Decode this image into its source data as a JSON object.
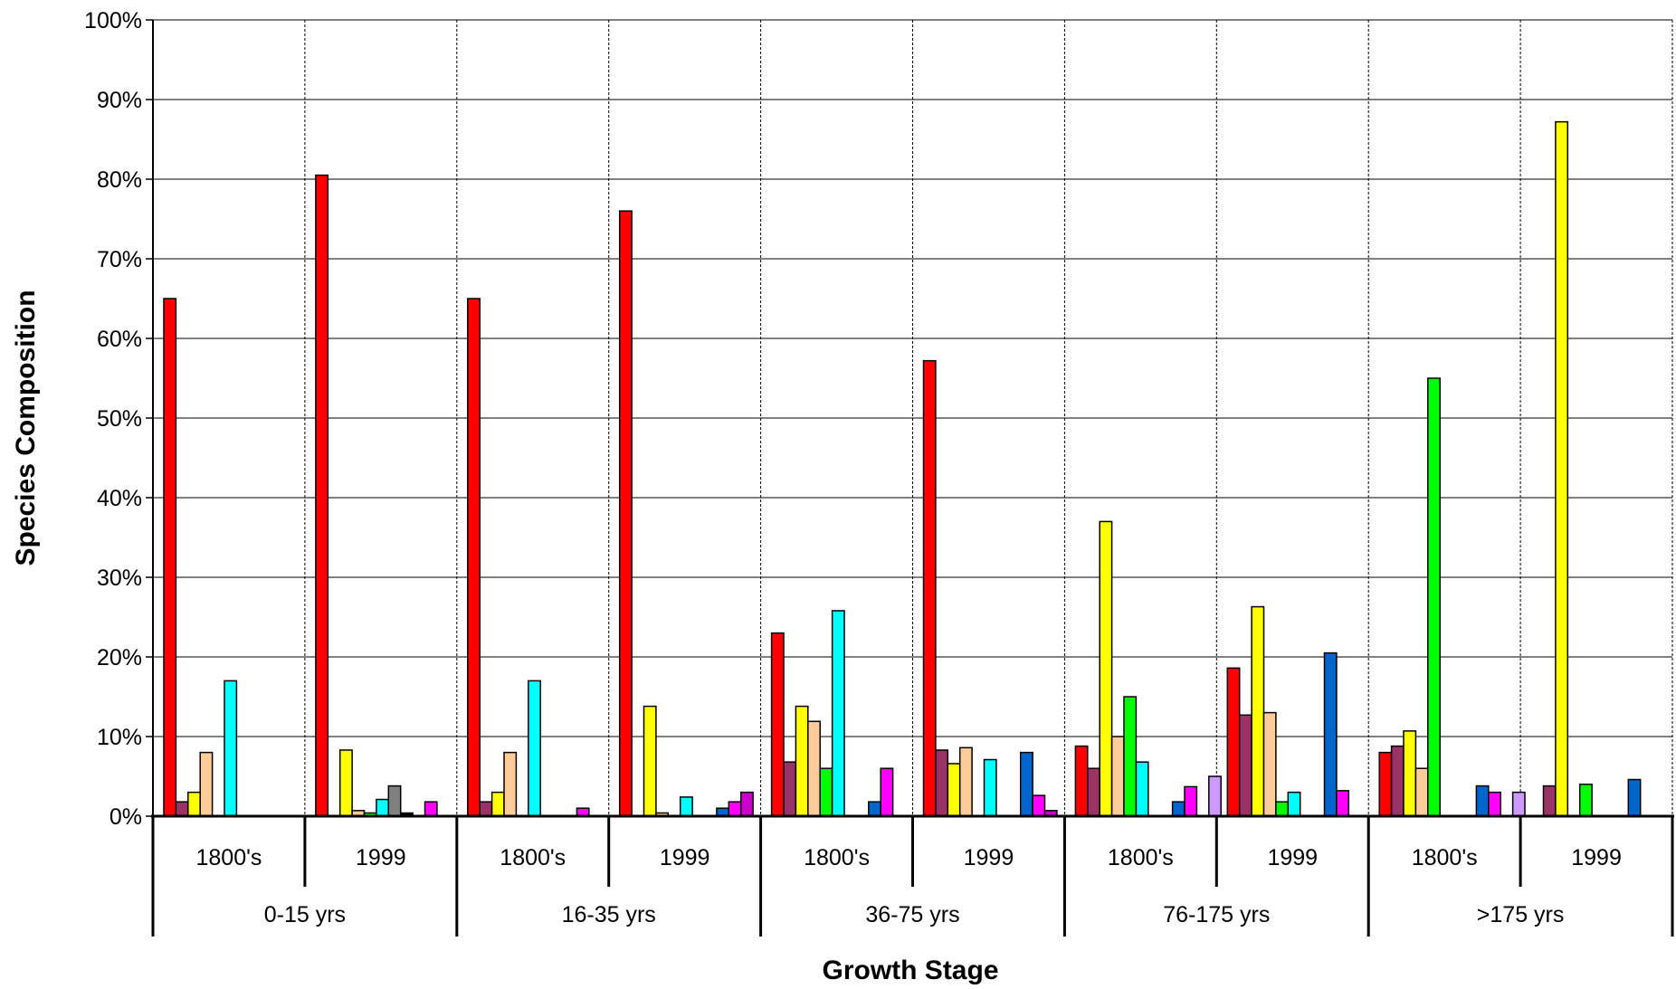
{
  "chart_data": {
    "type": "bar",
    "xlabel": "Growth Stage",
    "ylabel": "Species Composition",
    "ylim": [
      0,
      100
    ],
    "y_ticks": [
      "0%",
      "10%",
      "20%",
      "30%",
      "40%",
      "50%",
      "60%",
      "70%",
      "80%",
      "90%",
      "100%"
    ],
    "grid": true,
    "legend": "none",
    "groups": [
      {
        "label": "0-15 yrs",
        "subgroups": [
          "1800's",
          "1999"
        ]
      },
      {
        "label": "16-35 yrs",
        "subgroups": [
          "1800's",
          "1999"
        ]
      },
      {
        "label": "36-75 yrs",
        "subgroups": [
          "1800's",
          "1999"
        ]
      },
      {
        "label": "76-175 yrs",
        "subgroups": [
          "1800's",
          "1999"
        ]
      },
      {
        "label": ">175 yrs",
        "subgroups": [
          "1800's",
          "1999"
        ]
      }
    ],
    "categories": [
      "0-15 yrs 1800's",
      "0-15 yrs 1999",
      "16-35 yrs 1800's",
      "16-35 yrs 1999",
      "36-75 yrs 1800's",
      "36-75 yrs 1999",
      "76-175 yrs 1800's",
      "76-175 yrs 1999",
      ">175 yrs 1800's",
      ">175 yrs 1999"
    ],
    "series": [
      {
        "color": "#ff0000",
        "values": [
          65,
          80.5,
          65,
          76,
          23,
          57.2,
          8.8,
          18.6,
          8,
          0
        ]
      },
      {
        "color": "#993366",
        "values": [
          1.8,
          0,
          1.8,
          0,
          6.8,
          8.3,
          6,
          12.7,
          8.8,
          3.8
        ]
      },
      {
        "color": "#ffff00",
        "values": [
          3,
          8.3,
          3,
          13.8,
          13.8,
          6.6,
          37,
          26.3,
          10.7,
          87.2
        ]
      },
      {
        "color": "#ffcc99",
        "values": [
          8,
          0.7,
          8,
          0.4,
          11.9,
          8.6,
          10,
          13,
          6,
          0
        ]
      },
      {
        "color": "#00ff00",
        "values": [
          0,
          0.4,
          0,
          0,
          6,
          0,
          15,
          1.8,
          55,
          4
        ]
      },
      {
        "color": "#00ffff",
        "values": [
          17,
          2.1,
          17,
          2.4,
          25.8,
          7.1,
          6.8,
          3,
          0,
          0
        ]
      },
      {
        "color": "#808080",
        "values": [
          0,
          3.8,
          0,
          0,
          0,
          0,
          0,
          0,
          0,
          0
        ]
      },
      {
        "color": "#000000",
        "values": [
          0,
          0.4,
          0,
          0,
          0,
          0,
          0,
          0,
          0,
          0
        ]
      },
      {
        "color": "#0066cc",
        "values": [
          0,
          0,
          0,
          1,
          1.8,
          8,
          1.8,
          20.5,
          3.8,
          4.6
        ]
      },
      {
        "color": "#ff00ff",
        "values": [
          0,
          1.8,
          1,
          1.8,
          6,
          2.6,
          3.7,
          3.2,
          3,
          0
        ]
      },
      {
        "color": "#cc00cc",
        "values": [
          0,
          0,
          0,
          3,
          0,
          0.7,
          0,
          0,
          0,
          0
        ]
      },
      {
        "color": "#cc99ff",
        "values": [
          0,
          0,
          0,
          0,
          0,
          0,
          5,
          0,
          3,
          0
        ]
      }
    ]
  }
}
